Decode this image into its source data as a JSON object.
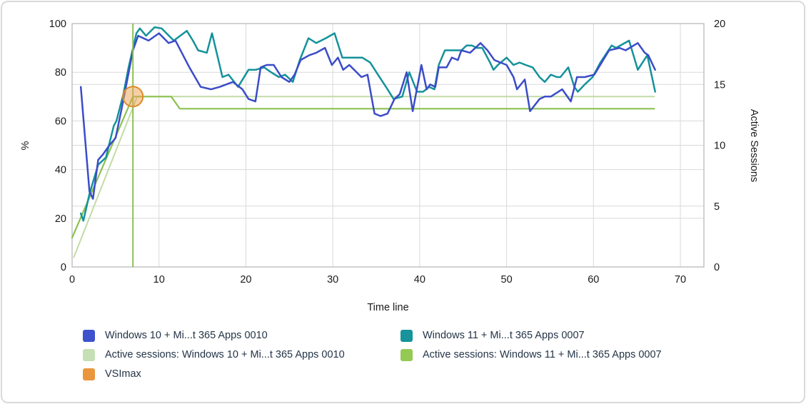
{
  "page": {
    "background": "#ffffff",
    "border_color": "#dadada"
  },
  "chart_data": {
    "type": "line",
    "title": "",
    "xlabel": "Time line",
    "ylabel_left": "%",
    "ylabel_right": "Active Sessions",
    "x_ticks": [
      0,
      10,
      20,
      30,
      40,
      50,
      60,
      70
    ],
    "y_left_ticks": [
      0,
      20,
      40,
      60,
      80,
      100
    ],
    "y_right_ticks": [
      0,
      5,
      10,
      15,
      20
    ],
    "xlim": [
      0,
      72.7
    ],
    "ylim_left": [
      0,
      100
    ],
    "ylim_right": [
      0,
      20
    ],
    "grid": true,
    "legend_position": "bottom",
    "grid_color": "#d9d9d9",
    "border_color": "#bfbfbf",
    "tick_color": "#1a1a1a",
    "series": [
      {
        "id": "win10-0010",
        "name": "Windows 10 + Mi...t 365 Apps 0010",
        "axis": "left",
        "unit": "%",
        "color": "#3b4cc8",
        "width": 2.5,
        "points": [
          [
            1,
            74
          ],
          [
            2,
            31
          ],
          [
            2.4,
            28
          ],
          [
            3,
            44
          ],
          [
            3.5,
            46
          ],
          [
            4.3,
            50
          ],
          [
            5,
            53
          ],
          [
            5.7,
            65
          ],
          [
            6.3,
            76
          ],
          [
            7,
            89
          ],
          [
            7.6,
            95
          ],
          [
            8.8,
            93
          ],
          [
            10,
            96
          ],
          [
            11.1,
            92
          ],
          [
            11.9,
            93
          ],
          [
            13.5,
            82
          ],
          [
            14.8,
            74
          ],
          [
            16,
            73
          ],
          [
            17,
            74
          ],
          [
            18.5,
            76
          ],
          [
            19.6,
            73
          ],
          [
            20.3,
            69
          ],
          [
            21.1,
            68
          ],
          [
            21.7,
            82
          ],
          [
            22.4,
            83
          ],
          [
            23.2,
            83
          ],
          [
            24.1,
            78
          ],
          [
            25,
            76
          ],
          [
            25.6,
            79
          ],
          [
            26.3,
            85
          ],
          [
            27.3,
            87
          ],
          [
            28.1,
            88
          ],
          [
            29.1,
            90
          ],
          [
            29.9,
            83
          ],
          [
            30.6,
            86
          ],
          [
            31.2,
            81
          ],
          [
            31.9,
            83
          ],
          [
            33.3,
            78
          ],
          [
            34,
            79
          ],
          [
            34.8,
            63
          ],
          [
            35.5,
            62
          ],
          [
            36.3,
            63
          ],
          [
            37.1,
            69
          ],
          [
            37.7,
            71
          ],
          [
            38.5,
            80
          ],
          [
            39.2,
            64
          ],
          [
            40.2,
            83
          ],
          [
            40.8,
            73
          ],
          [
            41.2,
            75
          ],
          [
            41.8,
            74
          ],
          [
            42.2,
            82
          ],
          [
            43.1,
            82
          ],
          [
            43.7,
            86
          ],
          [
            44.4,
            85
          ],
          [
            44.8,
            89
          ],
          [
            45.8,
            88
          ],
          [
            47,
            92
          ],
          [
            47.8,
            89
          ],
          [
            48.6,
            85
          ],
          [
            49.3,
            84
          ],
          [
            50,
            83
          ],
          [
            50.8,
            78
          ],
          [
            51.2,
            73
          ],
          [
            52.1,
            77
          ],
          [
            52.7,
            64
          ],
          [
            53.8,
            69
          ],
          [
            54.4,
            70
          ],
          [
            55.1,
            70
          ],
          [
            56.4,
            73
          ],
          [
            57.4,
            68
          ],
          [
            58.1,
            78
          ],
          [
            59,
            78
          ],
          [
            60.1,
            79
          ],
          [
            61.8,
            89
          ],
          [
            63,
            90
          ],
          [
            63.7,
            89
          ],
          [
            65.1,
            92
          ],
          [
            65.9,
            88
          ],
          [
            66.3,
            87
          ],
          [
            67.1,
            81
          ]
        ]
      },
      {
        "id": "win11-0007",
        "name": "Windows 11 + Mi...t 365 Apps 0007",
        "axis": "left",
        "unit": "%",
        "color": "#14929a",
        "width": 2.5,
        "points": [
          [
            1,
            22
          ],
          [
            1.3,
            19
          ],
          [
            2,
            30
          ],
          [
            3,
            42
          ],
          [
            3.9,
            45
          ],
          [
            4.1,
            48
          ],
          [
            4.8,
            58
          ],
          [
            5.1,
            60
          ],
          [
            5.9,
            71
          ],
          [
            6.5,
            82
          ],
          [
            7.4,
            96
          ],
          [
            7.8,
            98
          ],
          [
            8.5,
            95
          ],
          [
            9.5,
            98.5
          ],
          [
            10.3,
            98
          ],
          [
            11.7,
            93
          ],
          [
            13.2,
            97
          ],
          [
            13.9,
            93
          ],
          [
            14.5,
            89
          ],
          [
            15.5,
            88
          ],
          [
            16.1,
            96
          ],
          [
            17.3,
            78
          ],
          [
            18,
            79
          ],
          [
            19.1,
            74
          ],
          [
            20.3,
            81
          ],
          [
            21.1,
            81
          ],
          [
            22.1,
            82
          ],
          [
            22.9,
            80
          ],
          [
            23.8,
            78
          ],
          [
            24.5,
            79
          ],
          [
            25.4,
            76
          ],
          [
            26.2,
            85
          ],
          [
            27.2,
            94
          ],
          [
            28.1,
            92
          ],
          [
            29.2,
            94
          ],
          [
            30.2,
            96
          ],
          [
            31.1,
            86
          ],
          [
            32.2,
            86
          ],
          [
            33.4,
            86
          ],
          [
            34.3,
            84
          ],
          [
            35.2,
            79
          ],
          [
            36.3,
            73
          ],
          [
            37,
            69
          ],
          [
            38,
            70
          ],
          [
            38.8,
            80
          ],
          [
            39.7,
            72
          ],
          [
            40.4,
            72
          ],
          [
            41.1,
            74
          ],
          [
            41.7,
            73
          ],
          [
            42.2,
            83
          ],
          [
            42.9,
            89
          ],
          [
            43.6,
            89
          ],
          [
            44.8,
            89
          ],
          [
            45.4,
            91
          ],
          [
            46,
            91
          ],
          [
            46.6,
            90
          ],
          [
            47.2,
            90
          ],
          [
            48.1,
            84
          ],
          [
            48.5,
            81
          ],
          [
            49,
            83
          ],
          [
            50,
            86
          ],
          [
            50.8,
            83
          ],
          [
            51.5,
            84
          ],
          [
            52.2,
            83
          ],
          [
            53,
            82
          ],
          [
            53.8,
            78
          ],
          [
            54.4,
            76
          ],
          [
            55.1,
            79
          ],
          [
            55.8,
            78
          ],
          [
            56.2,
            78
          ],
          [
            57.1,
            82
          ],
          [
            57.8,
            74
          ],
          [
            58.2,
            72
          ],
          [
            59,
            75
          ],
          [
            59.9,
            78
          ],
          [
            60.8,
            84
          ],
          [
            62.1,
            91
          ],
          [
            62.6,
            90
          ],
          [
            64.1,
            93
          ],
          [
            65.1,
            81
          ],
          [
            66.2,
            87
          ],
          [
            67.1,
            72
          ]
        ]
      },
      {
        "id": "sessions-win10-0010",
        "name": "Active sessions: Windows 10 + Mi...t 365 Apps 0010",
        "axis": "right",
        "unit": "sessions",
        "color": "#c2dca6",
        "width": 2,
        "points": [
          [
            0.2,
            0.8
          ],
          [
            7.5,
            14
          ],
          [
            67,
            14
          ]
        ]
      },
      {
        "id": "sessions-win11-0007",
        "name": "Active sessions: Windows 11 + Mi...t 365 Apps 0007",
        "axis": "right",
        "unit": "sessions",
        "color": "#8cc152",
        "width": 2.2,
        "points": [
          [
            0,
            2.4
          ],
          [
            7,
            14
          ],
          [
            11.4,
            14
          ],
          [
            12.4,
            13
          ],
          [
            67,
            13
          ]
        ]
      }
    ],
    "vsimax_marker": {
      "label": "VSImax",
      "x": 7,
      "active_sessions": 14,
      "fill_color": "#eda04f",
      "stroke_color": "#dd8a28",
      "line_color": "#8cc152"
    }
  },
  "legend": {
    "items": [
      {
        "id": "win10-0010",
        "label": "Windows 10 + Mi...t 365 Apps 0010",
        "color": "#3d52cc"
      },
      {
        "id": "win11-0007",
        "label": "Windows 11 + Mi...t 365 Apps 0007",
        "color": "#17939b"
      },
      {
        "id": "sessions-win10-0010",
        "label": "Active sessions: Windows 10 + Mi...t 365 Apps 0010",
        "color": "#c5e0b4"
      },
      {
        "id": "sessions-win11-0007",
        "label": "Active sessions: Windows 11 + Mi...t 365 Apps 0007",
        "color": "#94c954"
      },
      {
        "id": "vsimax",
        "label": "VSImax",
        "color": "#e9963c"
      }
    ]
  }
}
